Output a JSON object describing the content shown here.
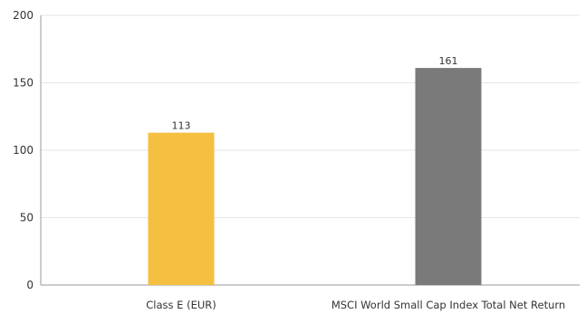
{
  "chart_data": {
    "type": "bar",
    "categories": [
      "Class E (EUR)",
      "MSCI World Small Cap Index Total Net Return"
    ],
    "values": [
      113,
      161
    ],
    "value_labels": [
      "113",
      "161"
    ],
    "bar_colors": [
      "#F5BF40",
      "#7A7A7A"
    ],
    "yticks": [
      0,
      50,
      100,
      150,
      200
    ],
    "ytick_labels": [
      "0",
      "50",
      "100",
      "150",
      "200"
    ],
    "ylim": [
      0,
      200
    ],
    "grid": true,
    "gridline_color": "#E6E6E6",
    "axis_color": "#999999"
  }
}
